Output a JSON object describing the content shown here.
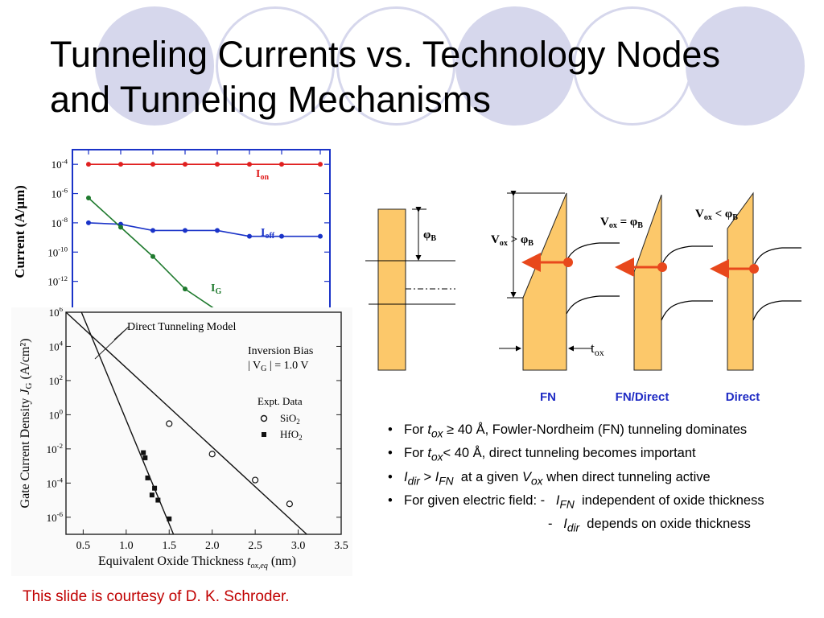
{
  "title": {
    "line1": "Tunneling Currents vs. Technology Nodes",
    "line2": "and Tunneling Mechanisms"
  },
  "colors": {
    "decoration": "#d6d7ec",
    "ion": "#e02020",
    "ioff": "#1a33c8",
    "ig": "#1f7a2e",
    "oxide": "#fcc86a",
    "arrow": "#e8481c",
    "mechanism_label": "#1f2bc4",
    "credit": "#c00000"
  },
  "chart_data": [
    {
      "type": "line",
      "yscale": "log",
      "ylabel": "Current (A/μm)",
      "ylim": [
        1e-14,
        0.001
      ],
      "xlim": [
        0.5,
        8.5
      ],
      "y_ticks": [
        "10^-4",
        "10^-6",
        "10^-8",
        "10^-10",
        "10^-12"
      ],
      "x": [
        1,
        2,
        3,
        4,
        5,
        6,
        7,
        8.2
      ],
      "series": [
        {
          "name": "I_on",
          "values": [
            0.0001,
            0.0001,
            0.0001,
            0.0001,
            0.0001,
            0.0001,
            0.0001,
            0.0001
          ]
        },
        {
          "name": "I_off",
          "values": [
            1e-08,
            8e-09,
            3e-09,
            3e-09,
            3e-09,
            1.2e-09,
            1.2e-09,
            1.2e-09
          ]
        },
        {
          "name": "I_G",
          "values": [
            5e-07,
            5e-09,
            5e-11,
            3e-13,
            1e-14,
            null,
            null,
            null
          ]
        }
      ]
    },
    {
      "type": "scatter",
      "yscale": "log",
      "xlabel": "Equivalent Oxide Thickness",
      "xlabel_symbol": "t",
      "xlabel_sub": "ox,eq",
      "xlabel_unit": "(nm)",
      "ylabel": "Gate Current Density",
      "ylabel_symbol": "J",
      "ylabel_sub": "G",
      "ylabel_unit": "(A/cm²)",
      "xlim": [
        0.3,
        3.5
      ],
      "ylim": [
        1e-07,
        1000000.0
      ],
      "x_ticks": [
        "0.5",
        "1.0",
        "1.5",
        "2.0",
        "2.5",
        "3.0",
        "3.5"
      ],
      "y_ticks": [
        "10^6",
        "10^4",
        "10^2",
        "10^0",
        "10^-2",
        "10^-4",
        "10^-6"
      ],
      "annotations": {
        "model": "Direct Tunneling Model",
        "bias_line1": "Inversion Bias",
        "bias_line2": "| V",
        "bias_sub": "G",
        "bias_line3": " | = 1.0 V",
        "legend_title": "Expt. Data",
        "sio2_label": "SiO",
        "hfo2_label": "HfO",
        "sub2": "2"
      },
      "series": [
        {
          "name": "SiO2",
          "marker": "open-circle",
          "x": [
            1.5,
            2.0,
            2.5,
            2.9
          ],
          "y": [
            0.3,
            0.005,
            0.00015,
            6e-06
          ]
        },
        {
          "name": "HfO2",
          "marker": "filled-square",
          "x": [
            1.2,
            1.22,
            1.25,
            1.3,
            1.33,
            1.37,
            1.5
          ],
          "y": [
            0.006,
            0.003,
            0.0002,
            2e-05,
            5e-05,
            1e-05,
            8e-07
          ]
        }
      ],
      "model_lines": [
        {
          "x": [
            0.3,
            3.1
          ],
          "y": [
            1000000.0,
            1e-07
          ]
        },
        {
          "x": [
            0.48,
            1.55
          ],
          "y": [
            1000000.0,
            1e-07
          ]
        }
      ]
    }
  ],
  "band": {
    "phi_b": "φ",
    "phi_sub": "B",
    "vox_gt_1": "V",
    "vox_sub": "ox",
    "vox_gt_2": " > φ",
    "vox_eq_2": " = φ",
    "vox_lt_2": " < φ",
    "tox": "t",
    "tox_sub": "ox",
    "labels": [
      "FN",
      "FN/Direct",
      "Direct"
    ]
  },
  "bullets": {
    "b1_pre": "For ",
    "b1_sym": "t",
    "b1_sub": "ox",
    "b1_post": " ≥ 40 Å, Fowler-Nordheim (FN) tunneling dominates",
    "b2_pre": "For ",
    "b2_sym": "t",
    "b2_sub": "ox",
    "b2_post": "< 40 Å, direct tunneling becomes important",
    "b3_sym1": "I",
    "b3_sub1": "dir",
    "b3_mid": " > ",
    "b3_sym2": "I",
    "b3_sub2": "FN",
    "b3_mid2": "  at a given ",
    "b3_sym3": "V",
    "b3_sub3": "ox",
    "b3_post": " when direct tunneling active",
    "b4_pre": "For given electric field: -   ",
    "b4_sym": "I",
    "b4_sub": "FN",
    "b4_post": "  independent of oxide thickness",
    "b5_pre": "-   ",
    "b5_sym": "I",
    "b5_sub": "dir",
    "b5_post": "  depends on oxide thickness"
  },
  "credit": "This slide is courtesy of D. K. Schroder."
}
